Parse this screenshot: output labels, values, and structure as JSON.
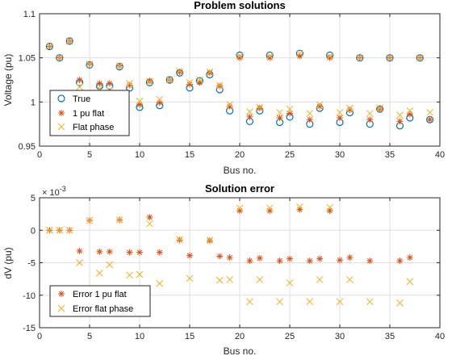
{
  "colors": {
    "true": "#0072BD",
    "flat1pu": "#D95319",
    "flatphase": "#EDB120"
  },
  "chart_data": [
    {
      "type": "scatter",
      "title": "Problem solutions",
      "xlabel": "Bus no.",
      "ylabel": "Voltage (pu)",
      "xlim": [
        0,
        40
      ],
      "ylim": [
        0.95,
        1.1
      ],
      "xticks": [
        0,
        5,
        10,
        15,
        20,
        25,
        30,
        35,
        40
      ],
      "yticks": [
        0.95,
        1,
        1.05,
        1.1
      ],
      "ytick_labels": [
        "0.95",
        "1",
        "1.05",
        "1.1"
      ],
      "grid": true,
      "legend": "bottom-left",
      "series": [
        {
          "name": "True",
          "marker": "circle",
          "x": [
            1,
            2,
            3,
            4,
            5,
            6,
            7,
            8,
            9,
            10,
            11,
            12,
            13,
            14,
            15,
            16,
            17,
            18,
            19,
            20,
            21,
            22,
            23,
            24,
            25,
            26,
            27,
            28,
            29,
            30,
            31,
            32,
            33,
            34,
            35,
            36,
            37,
            38,
            39
          ],
          "y": [
            1.063,
            1.05,
            1.069,
            1.022,
            1.042,
            1.018,
            1.018,
            1.04,
            1.016,
            0.994,
            1.022,
            0.996,
            1.025,
            1.033,
            1.016,
            1.024,
            1.031,
            1.014,
            0.99,
            1.053,
            0.978,
            0.99,
            1.053,
            0.977,
            0.983,
            1.055,
            0.975,
            0.993,
            1.053,
            0.977,
            0.988,
            1.05,
            0.975,
            0.992,
            1.05,
            0.973,
            0.982,
            1.05,
            0.98
          ]
        },
        {
          "name": "1 pu flat",
          "marker": "asterisk",
          "x": [
            1,
            2,
            3,
            4,
            5,
            6,
            7,
            8,
            9,
            10,
            11,
            12,
            13,
            14,
            15,
            16,
            17,
            18,
            19,
            20,
            21,
            22,
            23,
            24,
            25,
            26,
            27,
            28,
            29,
            30,
            31,
            32,
            33,
            34,
            35,
            36,
            37,
            38,
            39
          ],
          "y": [
            1.063,
            1.05,
            1.069,
            1.025,
            1.043,
            1.021,
            1.021,
            1.041,
            1.019,
            0.997,
            1.024,
            0.999,
            1.025,
            1.034,
            1.02,
            1.022,
            1.033,
            1.018,
            0.995,
            1.05,
            0.983,
            0.993,
            1.05,
            0.982,
            0.987,
            1.052,
            0.98,
            0.995,
            1.05,
            0.982,
            0.991,
            1.05,
            0.98,
            0.992,
            1.05,
            0.978,
            0.986,
            1.05,
            0.98
          ]
        },
        {
          "name": "Flat phase",
          "marker": "x",
          "x": [
            1,
            2,
            3,
            4,
            5,
            6,
            7,
            8,
            9,
            10,
            11,
            12,
            13,
            14,
            15,
            16,
            17,
            18,
            19,
            20,
            21,
            22,
            23,
            24,
            25,
            26,
            27,
            28,
            29,
            30,
            31,
            32,
            33,
            34,
            35,
            36,
            37,
            38,
            39
          ],
          "y": [
            1.063,
            1.05,
            1.069,
            1.017,
            1.043,
            1.015,
            1.013,
            1.041,
            1.021,
            1.001,
            1.023,
            1.003,
            1.025,
            1.035,
            1.022,
            1.025,
            1.034,
            1.019,
            0.997,
            1.052,
            0.989,
            0.994,
            1.052,
            0.988,
            0.992,
            1.055,
            0.987,
            0.997,
            1.052,
            0.988,
            0.993,
            1.05,
            0.987,
            0.993,
            1.05,
            0.985,
            0.99,
            1.05,
            0.988
          ]
        }
      ]
    },
    {
      "type": "scatter",
      "title": "Solution error",
      "xlabel": "Bus no.",
      "ylabel": "dV (pu)",
      "exponent_label": "10",
      "exponent_power": "-3",
      "exponent_prefix": "× ",
      "xlim": [
        0,
        40
      ],
      "ylim": [
        -15,
        5
      ],
      "xticks": [
        0,
        5,
        10,
        15,
        20,
        25,
        30,
        35,
        40
      ],
      "yticks": [
        -15,
        -10,
        -5,
        0,
        5
      ],
      "ytick_labels": [
        "-15",
        "-10",
        "-5",
        "0",
        "5"
      ],
      "grid": true,
      "legend": "bottom-left",
      "series": [
        {
          "name": "Error 1 pu flat",
          "marker": "asterisk",
          "x": [
            1,
            2,
            3,
            4,
            5,
            6,
            7,
            8,
            9,
            10,
            11,
            12,
            14,
            15,
            17,
            18,
            19,
            20,
            21,
            22,
            23,
            24,
            25,
            26,
            27,
            28,
            29,
            30,
            31,
            33,
            36,
            37
          ],
          "y": [
            0,
            0,
            0,
            -3.2,
            1.5,
            -3.3,
            -3.3,
            1.6,
            -3.4,
            -3.4,
            2.0,
            -3.4,
            -1.5,
            -3.9,
            -1.6,
            -4.0,
            -4.2,
            3.0,
            -4.7,
            -4.3,
            3.0,
            -4.7,
            -4.4,
            3.2,
            -4.7,
            -4.4,
            3.0,
            -4.6,
            -4.2,
            -4.7,
            -4.7,
            -4.2
          ]
        },
        {
          "name": "Error flat phase",
          "marker": "x",
          "x": [
            1,
            2,
            3,
            4,
            5,
            6,
            7,
            8,
            9,
            10,
            11,
            12,
            14,
            15,
            17,
            18,
            19,
            20,
            21,
            22,
            23,
            24,
            25,
            26,
            27,
            28,
            29,
            30,
            31,
            33,
            36,
            37
          ],
          "y": [
            0,
            0,
            0,
            -5.0,
            1.5,
            -6.6,
            -5.3,
            1.6,
            -6.9,
            -6.8,
            1.0,
            -8.2,
            -1.4,
            -7.4,
            -1.5,
            -7.7,
            -7.6,
            3.4,
            -11.0,
            -7.6,
            3.4,
            -11.0,
            -8.1,
            3.6,
            -11.0,
            -7.6,
            3.5,
            -11.0,
            -7.6,
            -11.0,
            -11.2,
            -7.9
          ]
        }
      ]
    }
  ]
}
